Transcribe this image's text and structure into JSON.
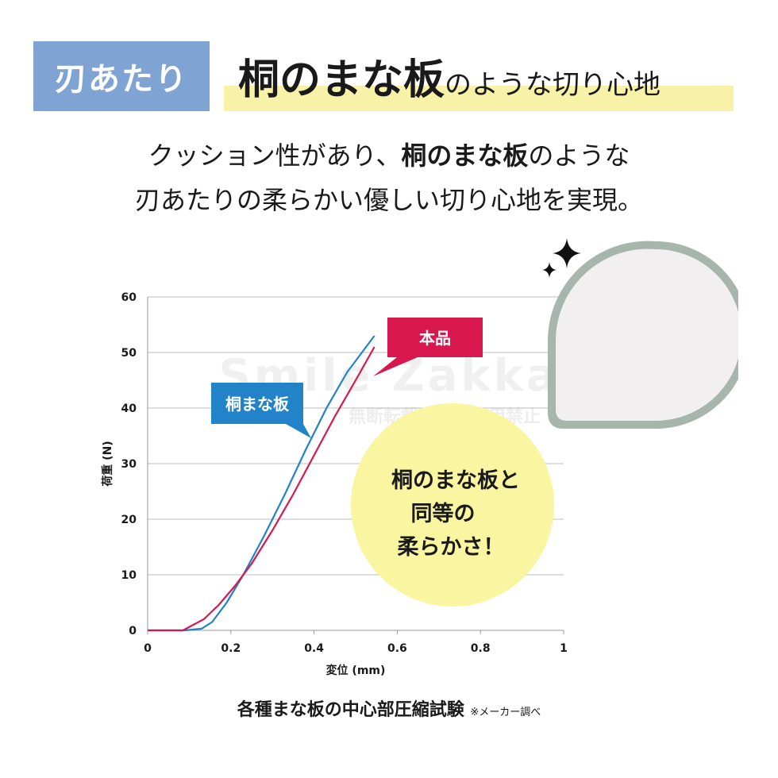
{
  "tag": "刃あたり",
  "headline": {
    "bold": "桐のまな板",
    "rest": "のような切り心地"
  },
  "subtext": {
    "line1_pre": "クッション性があり、",
    "line1_bold": "桐のまな板",
    "line1_post": "のような",
    "line2": "刃あたりの柔らかい優しい切り心地を実現。"
  },
  "callout": {
    "line1": "桐のまな板と",
    "line2": "同等の",
    "line3": "柔らかさ！"
  },
  "watermark": {
    "line1": "Smile Zakka",
    "line2": "無断転載・無断使用禁止"
  },
  "caption": {
    "main": "各種まな板の中心部圧縮試験",
    "note": "※メーカー調べ"
  },
  "colors": {
    "tag": "#7fa3d3",
    "highlight": "#f8f2a8",
    "honpin": "#d9174f",
    "kiri": "#2283c9",
    "callout": "#faf5a1",
    "board_rim": "#a6b6ad"
  },
  "icons": [
    "sparkle-icon",
    "cutting-board-shape"
  ],
  "chart_data": {
    "type": "line",
    "title": "",
    "xlabel": "変位 (mm)",
    "ylabel": "荷重 (N)",
    "xlim": [
      0,
      1
    ],
    "ylim": [
      0,
      60
    ],
    "xticks": [
      0,
      0.2,
      0.4,
      0.6,
      0.8,
      1
    ],
    "xtick_labels": [
      "0",
      "0.2",
      "0.4",
      "0.6",
      "0.8",
      "1"
    ],
    "yticks": [
      0,
      10,
      20,
      30,
      40,
      50,
      60
    ],
    "grid": true,
    "series": [
      {
        "name": "桐まな板",
        "color": "#2283c9",
        "x": [
          0,
          0.09,
          0.13,
          0.155,
          0.19,
          0.23,
          0.28,
          0.33,
          0.38,
          0.43,
          0.48,
          0.545
        ],
        "y": [
          0,
          0,
          0.3,
          1.5,
          5,
          10,
          17,
          24.5,
          32.5,
          40,
          46.5,
          53
        ]
      },
      {
        "name": "本品",
        "color": "#d9174f",
        "x": [
          0,
          0.085,
          0.135,
          0.17,
          0.21,
          0.25,
          0.3,
          0.35,
          0.4,
          0.45,
          0.5,
          0.545
        ],
        "y": [
          0,
          0,
          2,
          4.5,
          8,
          12,
          18,
          24.5,
          31.5,
          38.5,
          45,
          51
        ]
      }
    ]
  }
}
